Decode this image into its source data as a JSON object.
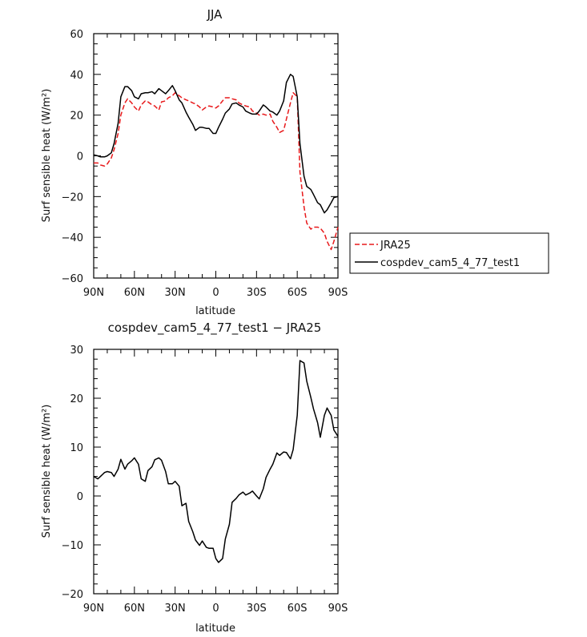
{
  "chart_data": [
    {
      "type": "line",
      "title": "JJA",
      "xlabel": "latitude",
      "ylabel": "Surf sensible heat (W/m²)",
      "ylim": [
        -60,
        60
      ],
      "xlim": [
        -90,
        90
      ],
      "yticks": [
        -60,
        -40,
        -20,
        0,
        20,
        40,
        60
      ],
      "ytick_labels": [
        "−60",
        "−40",
        "−20",
        "0",
        "20",
        "40",
        "60"
      ],
      "xticks": [
        -90,
        -60,
        -30,
        0,
        30,
        60,
        90
      ],
      "xtick_labels": [
        "90N",
        "60N",
        "30N",
        "0",
        "30S",
        "60S",
        "90S"
      ],
      "legend_position": "right",
      "series": [
        {
          "name": "JRA25",
          "color": "#e8191b",
          "dash": true,
          "x": [
            -90,
            -87,
            -85,
            -82,
            -80,
            -77,
            -75,
            -72,
            -70,
            -67,
            -65,
            -62,
            -60,
            -57,
            -55,
            -52,
            -50,
            -47,
            -45,
            -42,
            -40,
            -37,
            -35,
            -32,
            -30,
            -27,
            -25,
            -22,
            -20,
            -17,
            -15,
            -12,
            -10,
            -7,
            -5,
            -2,
            0,
            2,
            5,
            7,
            10,
            12,
            15,
            17,
            20,
            22,
            25,
            27,
            30,
            32,
            35,
            37,
            40,
            42,
            45,
            47,
            50,
            52,
            55,
            57,
            60,
            62,
            65,
            67,
            70,
            72,
            75,
            77,
            80,
            82,
            85,
            87,
            90
          ],
          "values": [
            -3.5,
            -3.5,
            -4.5,
            -5,
            -4,
            -1,
            3,
            11,
            20,
            26,
            28,
            26,
            24,
            22,
            25,
            27,
            26.5,
            25,
            24.5,
            22.5,
            26.5,
            27,
            28.5,
            29.5,
            31,
            29.5,
            28.5,
            27.5,
            27,
            26,
            25.5,
            24,
            22.5,
            24,
            24.5,
            24,
            23.5,
            24.5,
            27,
            28.5,
            28.5,
            28,
            27.5,
            26,
            25,
            24.5,
            24,
            22,
            21,
            20,
            20.5,
            20,
            20.5,
            17,
            14,
            11.5,
            12.5,
            18,
            26,
            31,
            29,
            -8,
            -25,
            -33,
            -36,
            -35,
            -35,
            -35.5,
            -38,
            -42,
            -46,
            -42,
            -35
          ]
        },
        {
          "name": "cospdev_cam5_4_77_test1",
          "color": "#000000",
          "dash": false,
          "x": [
            -90,
            -87,
            -85,
            -82,
            -80,
            -77,
            -75,
            -72,
            -70,
            -67,
            -65,
            -62,
            -60,
            -57,
            -55,
            -52,
            -50,
            -47,
            -45,
            -42,
            -40,
            -37,
            -35,
            -32,
            -30,
            -27,
            -25,
            -22,
            -20,
            -17,
            -15,
            -12,
            -10,
            -7,
            -5,
            -2,
            0,
            2,
            5,
            7,
            10,
            12,
            15,
            17,
            20,
            22,
            25,
            27,
            30,
            32,
            35,
            37,
            40,
            42,
            45,
            47,
            50,
            52,
            55,
            57,
            60,
            62,
            65,
            67,
            70,
            72,
            75,
            77,
            80,
            82,
            85,
            87,
            90
          ],
          "values": [
            0.5,
            0,
            -0.5,
            -0.5,
            0,
            1.5,
            6,
            16,
            29,
            34,
            34,
            32,
            29,
            28,
            30.5,
            31,
            31,
            31.5,
            30.5,
            33,
            32,
            30.5,
            32,
            34.5,
            32,
            27.5,
            26,
            21.5,
            19,
            15.5,
            12.5,
            14,
            14,
            13.5,
            13.5,
            11,
            11,
            14,
            18,
            21,
            23,
            25.5,
            26,
            25,
            24,
            22,
            21,
            20.5,
            20.5,
            22,
            25,
            24,
            22,
            21.5,
            20,
            22,
            27,
            36,
            40,
            39,
            29,
            6,
            -10,
            -15,
            -16.5,
            -19,
            -23,
            -24,
            -28,
            -26.5,
            -23,
            -20.5,
            -20
          ]
        }
      ]
    },
    {
      "type": "line",
      "title": "cospdev_cam5_4_77_test1 − JRA25",
      "xlabel": "latitude",
      "ylabel": "Surf sensible heat (W/m²)",
      "ylim": [
        -20,
        30
      ],
      "xlim": [
        -90,
        90
      ],
      "yticks": [
        -20,
        -10,
        0,
        10,
        20,
        30
      ],
      "ytick_labels": [
        "−20",
        "−10",
        "0",
        "10",
        "20",
        "30"
      ],
      "xticks": [
        -90,
        -60,
        -30,
        0,
        30,
        60,
        90
      ],
      "xtick_labels": [
        "90N",
        "60N",
        "30N",
        "0",
        "30S",
        "60S",
        "90S"
      ],
      "series": [
        {
          "color": "#000000",
          "dash": false,
          "x": [
            -90,
            -87,
            -85,
            -82,
            -80,
            -77,
            -75,
            -72,
            -70,
            -67,
            -65,
            -62,
            -60,
            -57,
            -55,
            -52,
            -50,
            -47,
            -45,
            -42,
            -40,
            -37,
            -35,
            -32,
            -30,
            -27,
            -25,
            -22,
            -20,
            -17,
            -15,
            -12,
            -10,
            -7,
            -5,
            -2,
            0,
            2,
            5,
            7,
            10,
            12,
            15,
            17,
            20,
            22,
            25,
            27,
            30,
            32,
            35,
            37,
            40,
            42,
            45,
            47,
            50,
            52,
            55,
            57,
            60,
            62,
            65,
            67,
            70,
            72,
            75,
            77,
            80,
            82,
            85,
            87,
            90
          ],
          "values": [
            4,
            3.5,
            4,
            4.8,
            5,
            4.8,
            4,
            5.5,
            7.5,
            5.5,
            6.5,
            7.2,
            7.8,
            6.5,
            3.5,
            3,
            5.2,
            6,
            7.4,
            7.8,
            7.3,
            5,
            2.5,
            2.5,
            3,
            2,
            -2,
            -1.5,
            -5.2,
            -7.3,
            -9,
            -10.1,
            -9.2,
            -10.5,
            -10.7,
            -10.7,
            -12.8,
            -13.6,
            -12.8,
            -8.8,
            -5.8,
            -1.3,
            -0.5,
            0.2,
            0.8,
            0.2,
            0.6,
            1,
            0,
            -0.6,
            1.5,
            3.8,
            5.5,
            6.5,
            8.8,
            8.3,
            9,
            8.9,
            7.6,
            9.5,
            16.5,
            27.7,
            27.2,
            23.5,
            20.2,
            17.8,
            15,
            12,
            16.5,
            18,
            16.5,
            13.5,
            12.2
          ]
        }
      ]
    }
  ]
}
